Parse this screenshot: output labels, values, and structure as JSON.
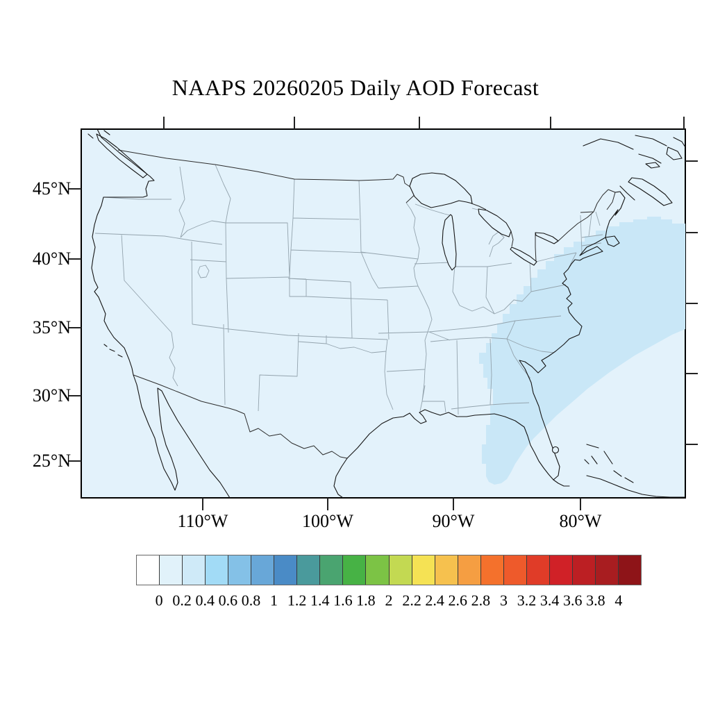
{
  "title": "NAAPS 20260205 Daily AOD Forecast",
  "colors": {
    "map_background": "#e3f2fb",
    "aod_band": "#c9e7f7",
    "coastline": "#141414",
    "state_border": "#93a3ad",
    "frame": "#000000"
  },
  "axes": {
    "lon": {
      "labels": [
        "110°W",
        "100°W",
        "90°W",
        "80°W"
      ]
    },
    "lat": {
      "labels": [
        "45°N",
        "40°N",
        "35°N",
        "30°N",
        "25°N"
      ]
    }
  },
  "colorbar": {
    "labels": [
      "0",
      "0.2",
      "0.4",
      "0.6",
      "0.8",
      "1",
      "1.2",
      "1.4",
      "1.6",
      "1.8",
      "2",
      "2.2",
      "2.4",
      "2.6",
      "2.8",
      "3",
      "3.2",
      "3.4",
      "3.6",
      "3.8",
      "4"
    ],
    "cell_colors": [
      "#ffffff",
      "#e1f2fa",
      "#cfeaf8",
      "#a2dbf6",
      "#84c1e7",
      "#68a7d8",
      "#4a8bc6",
      "#4a9a9c",
      "#4aa470",
      "#47b245",
      "#7cc345",
      "#c3d952",
      "#f5e254",
      "#f6c14e",
      "#f59e42",
      "#f4712c",
      "#ee5a2b",
      "#e03c28",
      "#d02127",
      "#bc1f23",
      "#a81d20",
      "#8e1418"
    ]
  },
  "chart_data": {
    "type": "heatmap",
    "title": "NAAPS 20260205 Daily AOD Forecast",
    "variable": "Aerosol Optical Depth",
    "colorbar_ticks": [
      0,
      0.2,
      0.4,
      0.6,
      0.8,
      1,
      1.2,
      1.4,
      1.6,
      1.8,
      2,
      2.2,
      2.4,
      2.6,
      2.8,
      3,
      3.2,
      3.4,
      3.6,
      3.8,
      4
    ],
    "lon_ticks": [
      "110°W",
      "100°W",
      "90°W",
      "80°W"
    ],
    "lat_ticks": [
      "45°N",
      "40°N",
      "35°N",
      "30°N",
      "25°N"
    ],
    "features": [
      {
        "name": "background-field",
        "aod_range": [
          0,
          0.2
        ]
      },
      {
        "name": "aod-plume",
        "aod_range": [
          0.2,
          0.4
        ],
        "description": "Diagonal band over Georgia, South Carolina and coastal North Carolina extending northeast offshore over the Atlantic to the map edge, plus an arm over the eastern Gulf of Mexico west of Florida and a small isolated patch near the eastern map edge."
      }
    ]
  }
}
